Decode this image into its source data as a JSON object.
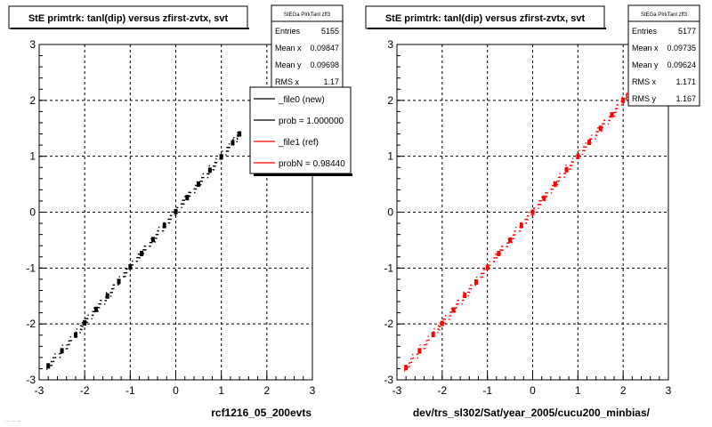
{
  "pads": [
    {
      "title": "StE primtrk: tanl(dip) versus zfirst-zvtx, svt",
      "stats": {
        "name": "StEGa PIrkTanl zff3",
        "rows": [
          {
            "label": "Entries",
            "value": "5155"
          },
          {
            "label": "Mean x",
            "value": "0.09847"
          },
          {
            "label": "Mean y",
            "value": "0.09698"
          },
          {
            "label": "RMS x",
            "value": "1.17"
          }
        ]
      },
      "legend": [
        {
          "label": "_file0 (new)",
          "color": "#000000"
        },
        {
          "label": "prob = 1.000000",
          "color": "#000000"
        },
        {
          "label": "_file1 (ref)",
          "color": "#ff0000"
        },
        {
          "label": "probN = 0.98440",
          "color": "#ff0000"
        }
      ],
      "xlabel": "rcf1216_05_200evts"
    },
    {
      "title": "StE primtrk: tanl(dip) versus zfirst-zvtx, svt",
      "stats": {
        "name": "StEGa PIrkTanl zff3",
        "rows": [
          {
            "label": "Entries",
            "value": "5177"
          },
          {
            "label": "Mean x",
            "value": "0.09735"
          },
          {
            "label": "Mean y",
            "value": "0.09624"
          },
          {
            "label": "RMS x",
            "value": "1.171"
          },
          {
            "label": "RMS y",
            "value": "1.167"
          }
        ]
      },
      "xlabel": "dev/trs_sl302/Sat/year_2005/cucu200_minbias/"
    }
  ],
  "footer_text": "... ... ...",
  "chart_data": [
    {
      "type": "scatter",
      "title": "StE primtrk: tanl(dip) versus zfirst-zvtx, svt",
      "xlabel": "rcf1216_05_200evts",
      "ylabel": "",
      "xlim": [
        -3,
        3
      ],
      "ylim": [
        -3,
        3
      ],
      "x_ticks": [
        -3,
        -2,
        -1,
        0,
        1,
        2,
        3
      ],
      "y_ticks": [
        -3,
        -2,
        -1,
        0,
        1,
        2,
        3
      ],
      "grid": true,
      "color": "#000000",
      "points": [
        {
          "x": -2.8,
          "y": -2.75
        },
        {
          "x": -2.5,
          "y": -2.48
        },
        {
          "x": -2.2,
          "y": -2.2
        },
        {
          "x": -2.0,
          "y": -1.98
        },
        {
          "x": -1.75,
          "y": -1.74
        },
        {
          "x": -1.5,
          "y": -1.5
        },
        {
          "x": -1.25,
          "y": -1.24
        },
        {
          "x": -1.0,
          "y": -0.98
        },
        {
          "x": -0.75,
          "y": -0.74
        },
        {
          "x": -0.5,
          "y": -0.49
        },
        {
          "x": -0.25,
          "y": -0.24
        },
        {
          "x": 0.0,
          "y": 0.01
        },
        {
          "x": 0.25,
          "y": 0.26
        },
        {
          "x": 0.5,
          "y": 0.5
        },
        {
          "x": 0.75,
          "y": 0.75
        },
        {
          "x": 1.0,
          "y": 0.99
        },
        {
          "x": 1.25,
          "y": 1.24
        },
        {
          "x": 1.4,
          "y": 1.4
        }
      ]
    },
    {
      "type": "scatter",
      "title": "StE primtrk: tanl(dip) versus zfirst-zvtx, svt",
      "xlabel": "dev/trs_sl302/Sat/year_2005/cucu200_minbias/",
      "ylabel": "",
      "xlim": [
        -3,
        3
      ],
      "ylim": [
        -3,
        3
      ],
      "x_ticks": [
        -3,
        -2,
        -1,
        0,
        1,
        2,
        3
      ],
      "y_ticks": [
        -3,
        -2,
        -1,
        0,
        1,
        2,
        3
      ],
      "grid": true,
      "color": "#ff0000",
      "points": [
        {
          "x": -2.8,
          "y": -2.78
        },
        {
          "x": -2.5,
          "y": -2.48
        },
        {
          "x": -2.2,
          "y": -2.19
        },
        {
          "x": -2.0,
          "y": -1.99
        },
        {
          "x": -1.75,
          "y": -1.75
        },
        {
          "x": -1.5,
          "y": -1.49
        },
        {
          "x": -1.25,
          "y": -1.25
        },
        {
          "x": -1.0,
          "y": -0.99
        },
        {
          "x": -0.75,
          "y": -0.74
        },
        {
          "x": -0.5,
          "y": -0.5
        },
        {
          "x": -0.25,
          "y": -0.24
        },
        {
          "x": 0.0,
          "y": 0.0
        },
        {
          "x": 0.25,
          "y": 0.25
        },
        {
          "x": 0.5,
          "y": 0.5
        },
        {
          "x": 0.75,
          "y": 0.76
        },
        {
          "x": 1.0,
          "y": 1.0
        },
        {
          "x": 1.25,
          "y": 1.25
        },
        {
          "x": 1.5,
          "y": 1.5
        },
        {
          "x": 1.75,
          "y": 1.74
        },
        {
          "x": 2.0,
          "y": 2.0
        },
        {
          "x": 2.15,
          "y": 2.14
        }
      ]
    }
  ]
}
